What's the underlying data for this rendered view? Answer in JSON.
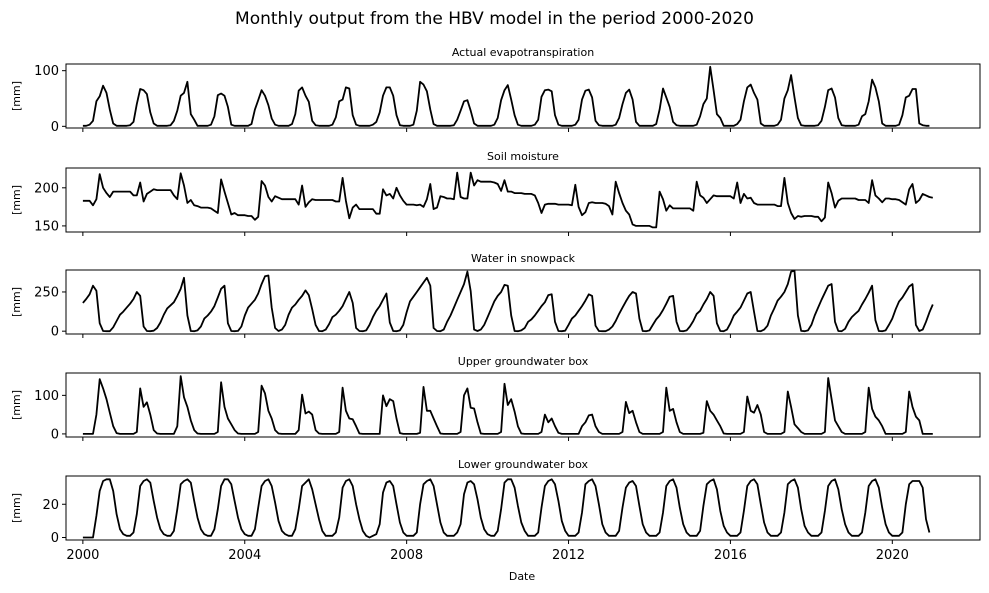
{
  "chart_data": {
    "type": "line",
    "title": "Monthly output from the HBV model in the period 2000-2020",
    "xlabel": "Date",
    "xlim": [
      "1999-08",
      "2022-03"
    ],
    "xticks": [
      "2000",
      "2004",
      "2008",
      "2012",
      "2016",
      "2020"
    ],
    "x_start": "2000-01",
    "x_step": "1 month",
    "line_color": "#000000",
    "grid": false,
    "legend": "none",
    "panels": [
      {
        "title": "Actual evapotranspiration",
        "ylabel": "[mm]",
        "ylim": [
          -3,
          112
        ],
        "yticks": [
          0,
          100
        ],
        "values": [
          1,
          1,
          3,
          10,
          45,
          54,
          73,
          60,
          30,
          5,
          1,
          1,
          1,
          1,
          2,
          8,
          40,
          67,
          65,
          58,
          25,
          5,
          1,
          1,
          1,
          1,
          2,
          10,
          28,
          55,
          60,
          80,
          22,
          12,
          1,
          1,
          1,
          1,
          3,
          18,
          56,
          59,
          55,
          35,
          3,
          1,
          1,
          1,
          1,
          1,
          4,
          30,
          47,
          65,
          55,
          38,
          14,
          3,
          1,
          1,
          1,
          1,
          4,
          22,
          64,
          70,
          55,
          44,
          10,
          2,
          1,
          1,
          1,
          1,
          3,
          16,
          45,
          48,
          70,
          68,
          20,
          3,
          1,
          1,
          1,
          1,
          3,
          8,
          25,
          55,
          70,
          70,
          55,
          20,
          2,
          1,
          1,
          1,
          3,
          28,
          80,
          75,
          63,
          30,
          4,
          1,
          1,
          1,
          1,
          1,
          2,
          12,
          28,
          45,
          47,
          28,
          5,
          1,
          1,
          1,
          1,
          1,
          3,
          15,
          47,
          65,
          74,
          48,
          20,
          3,
          1,
          1,
          1,
          1,
          3,
          12,
          53,
          65,
          66,
          63,
          20,
          3,
          1,
          1,
          1,
          1,
          3,
          12,
          48,
          64,
          66,
          52,
          10,
          2,
          1,
          1,
          1,
          1,
          3,
          15,
          40,
          60,
          66,
          48,
          8,
          1,
          1,
          1,
          1,
          1,
          4,
          30,
          68,
          52,
          35,
          8,
          2,
          1,
          1,
          1,
          1,
          1,
          3,
          18,
          40,
          50,
          107,
          65,
          22,
          15,
          1,
          1,
          1,
          1,
          4,
          12,
          45,
          70,
          75,
          60,
          48,
          5,
          1,
          1,
          1,
          1,
          3,
          12,
          50,
          65,
          92,
          52,
          15,
          2,
          1,
          1,
          1,
          1,
          2,
          10,
          35,
          65,
          68,
          52,
          15,
          2,
          1,
          1,
          1,
          1,
          3,
          18,
          22,
          45,
          84,
          70,
          45,
          5,
          1,
          1,
          1,
          1,
          3,
          20,
          52,
          55,
          67,
          67,
          5,
          2,
          1,
          1
        ]
      },
      {
        "title": "Soil moisture",
        "ylabel": "[mm]",
        "ylim": [
          142,
          226
        ],
        "yticks": [
          150,
          200
        ],
        "values": [
          183,
          183,
          183,
          177,
          185,
          218,
          200,
          193,
          188,
          195,
          195,
          195,
          195,
          195,
          195,
          190,
          190,
          207,
          182,
          192,
          195,
          198,
          197,
          197,
          197,
          197,
          197,
          190,
          185,
          219,
          203,
          180,
          184,
          177,
          176,
          174,
          174,
          174,
          173,
          170,
          167,
          211,
          195,
          180,
          165,
          167,
          164,
          164,
          164,
          163,
          163,
          158,
          162,
          209,
          203,
          188,
          182,
          189,
          187,
          185,
          185,
          185,
          185,
          185,
          178,
          203,
          175,
          181,
          185,
          184,
          184,
          184,
          184,
          184,
          184,
          182,
          182,
          213,
          183,
          160,
          174,
          178,
          172,
          172,
          172,
          172,
          172,
          166,
          166,
          198,
          190,
          192,
          186,
          200,
          190,
          183,
          178,
          178,
          178,
          177,
          178,
          175,
          185,
          205,
          172,
          174,
          189,
          188,
          186,
          186,
          185,
          220,
          188,
          186,
          186,
          220,
          203,
          210,
          208,
          208,
          208,
          208,
          207,
          205,
          196,
          210,
          195,
          195,
          193,
          193,
          193,
          192,
          192,
          192,
          190,
          180,
          167,
          178,
          179,
          179,
          179,
          178,
          178,
          178,
          178,
          177,
          204,
          175,
          164,
          168,
          180,
          181,
          180,
          180,
          180,
          179,
          176,
          165,
          208,
          193,
          180,
          170,
          165,
          152,
          150,
          150,
          150,
          150,
          150,
          148,
          148,
          195,
          185,
          170,
          177,
          173,
          173,
          173,
          173,
          173,
          173,
          170,
          208,
          190,
          187,
          180,
          185,
          190,
          189,
          189,
          189,
          189,
          189,
          186,
          207,
          180,
          192,
          186,
          187,
          180,
          178,
          178,
          178,
          178,
          178,
          178,
          176,
          176,
          213,
          180,
          167,
          159,
          163,
          162,
          163,
          163,
          163,
          162,
          162,
          156,
          161,
          207,
          193,
          174,
          183,
          186,
          186,
          186,
          186,
          186,
          184,
          184,
          184,
          180,
          210,
          190,
          186,
          181,
          186,
          186,
          185,
          185,
          184,
          181,
          178,
          198,
          205,
          180,
          184,
          192,
          190,
          188,
          187
        ]
      },
      {
        "title": "Water in snowpack",
        "ylabel": "[mm]",
        "ylim": [
          -18,
          390
        ],
        "yticks": [
          0,
          250
        ],
        "values": [
          180,
          205,
          235,
          290,
          258,
          50,
          1,
          0,
          0,
          25,
          65,
          105,
          125,
          150,
          175,
          205,
          250,
          225,
          30,
          1,
          0,
          3,
          20,
          55,
          105,
          145,
          165,
          185,
          225,
          270,
          340,
          100,
          1,
          0,
          5,
          30,
          80,
          100,
          125,
          160,
          215,
          270,
          290,
          50,
          1,
          0,
          2,
          30,
          100,
          150,
          175,
          200,
          240,
          300,
          350,
          355,
          150,
          20,
          1,
          10,
          40,
          105,
          150,
          170,
          200,
          225,
          260,
          230,
          140,
          40,
          1,
          0,
          10,
          45,
          90,
          105,
          130,
          160,
          205,
          250,
          180,
          20,
          1,
          0,
          5,
          40,
          90,
          130,
          160,
          200,
          240,
          55,
          1,
          0,
          5,
          40,
          120,
          190,
          220,
          250,
          280,
          310,
          340,
          290,
          20,
          1,
          0,
          10,
          60,
          100,
          150,
          200,
          250,
          300,
          380,
          255,
          10,
          1,
          10,
          40,
          90,
          140,
          190,
          225,
          250,
          295,
          290,
          100,
          1,
          0,
          5,
          20,
          60,
          75,
          100,
          130,
          160,
          185,
          230,
          235,
          60,
          1,
          0,
          3,
          40,
          80,
          100,
          130,
          160,
          195,
          235,
          225,
          35,
          1,
          0,
          0,
          10,
          30,
          65,
          110,
          150,
          190,
          225,
          250,
          240,
          80,
          1,
          0,
          5,
          40,
          75,
          100,
          135,
          175,
          220,
          225,
          60,
          1,
          0,
          5,
          30,
          65,
          110,
          130,
          170,
          205,
          250,
          225,
          50,
          1,
          0,
          10,
          50,
          100,
          125,
          150,
          195,
          240,
          250,
          125,
          1,
          0,
          10,
          35,
          100,
          145,
          195,
          220,
          250,
          300,
          380,
          385,
          100,
          2,
          0,
          5,
          40,
          100,
          150,
          200,
          245,
          290,
          300,
          60,
          1,
          0,
          15,
          60,
          90,
          110,
          130,
          170,
          205,
          245,
          290,
          70,
          1,
          0,
          5,
          40,
          80,
          140,
          190,
          215,
          250,
          285,
          300,
          40,
          1,
          10,
          60,
          120,
          170
        ]
      },
      {
        "title": "Upper groundwater box",
        "ylabel": "[mm]",
        "ylim": [
          -8,
          158
        ],
        "yticks": [
          0,
          100
        ],
        "values": [
          0,
          0,
          0,
          0,
          50,
          142,
          118,
          90,
          55,
          20,
          2,
          0,
          0,
          0,
          0,
          0,
          5,
          118,
          70,
          82,
          50,
          10,
          1,
          0,
          0,
          0,
          0,
          0,
          20,
          150,
          95,
          70,
          35,
          10,
          1,
          0,
          0,
          0,
          0,
          0,
          5,
          134,
          70,
          40,
          25,
          10,
          1,
          0,
          0,
          0,
          0,
          0,
          5,
          125,
          105,
          60,
          40,
          10,
          1,
          0,
          0,
          0,
          0,
          0,
          10,
          102,
          53,
          58,
          50,
          10,
          1,
          0,
          0,
          0,
          0,
          0,
          5,
          120,
          60,
          40,
          38,
          20,
          1,
          0,
          0,
          0,
          0,
          0,
          0,
          100,
          72,
          90,
          85,
          40,
          2,
          0,
          0,
          0,
          0,
          0,
          3,
          122,
          60,
          60,
          40,
          20,
          1,
          0,
          0,
          0,
          0,
          0,
          5,
          100,
          118,
          68,
          66,
          30,
          1,
          0,
          0,
          0,
          0,
          0,
          5,
          130,
          75,
          90,
          58,
          20,
          1,
          0,
          0,
          0,
          0,
          0,
          5,
          50,
          30,
          40,
          20,
          3,
          0,
          0,
          0,
          0,
          0,
          0,
          20,
          30,
          48,
          50,
          20,
          5,
          0,
          0,
          0,
          0,
          0,
          0,
          5,
          83,
          54,
          60,
          30,
          5,
          0,
          0,
          0,
          0,
          0,
          0,
          5,
          120,
          60,
          65,
          30,
          5,
          0,
          0,
          0,
          0,
          0,
          0,
          3,
          85,
          60,
          50,
          35,
          20,
          1,
          0,
          0,
          0,
          0,
          0,
          5,
          97,
          60,
          55,
          75,
          50,
          5,
          0,
          0,
          0,
          0,
          0,
          5,
          110,
          70,
          25,
          15,
          5,
          0,
          0,
          0,
          0,
          0,
          0,
          5,
          145,
          90,
          35,
          20,
          5,
          0,
          0,
          0,
          0,
          0,
          0,
          5,
          120,
          65,
          45,
          35,
          20,
          0,
          0,
          0,
          0,
          0,
          0,
          5,
          110,
          70,
          45,
          35,
          0,
          0,
          0,
          0
        ]
      },
      {
        "title": "Lower groundwater box",
        "ylabel": "[mm]",
        "ylim": [
          -1.5,
          37
        ],
        "yticks": [
          0,
          20
        ],
        "values": [
          0,
          0,
          0,
          0,
          13,
          28,
          34,
          35,
          35,
          28,
          14,
          5,
          2,
          1,
          1,
          3,
          14,
          31,
          34,
          35,
          33,
          22,
          12,
          5,
          2,
          1,
          1,
          4,
          17,
          32,
          34,
          35,
          33,
          22,
          12,
          5,
          2,
          1,
          1,
          5,
          17,
          31,
          35,
          35,
          32,
          22,
          12,
          5,
          2,
          1,
          1,
          5,
          18,
          31,
          34,
          35,
          31,
          21,
          10,
          4,
          2,
          1,
          1,
          5,
          17,
          31,
          33,
          35,
          29,
          20,
          11,
          4,
          1,
          1,
          1,
          3,
          12,
          30,
          34,
          35,
          31,
          20,
          11,
          4,
          1,
          0,
          1,
          2,
          8,
          27,
          33,
          34,
          31,
          20,
          9,
          3,
          1,
          1,
          1,
          3,
          20,
          32,
          34,
          35,
          31,
          20,
          9,
          3,
          1,
          1,
          1,
          3,
          8,
          26,
          33,
          34,
          32,
          23,
          12,
          5,
          2,
          1,
          1,
          4,
          17,
          33,
          35,
          35,
          30,
          19,
          9,
          4,
          1,
          1,
          1,
          3,
          18,
          31,
          34,
          35,
          32,
          22,
          10,
          4,
          1,
          1,
          1,
          3,
          15,
          32,
          34,
          35,
          31,
          20,
          8,
          3,
          1,
          1,
          1,
          4,
          18,
          30,
          33,
          34,
          31,
          19,
          8,
          3,
          1,
          1,
          1,
          3,
          15,
          31,
          34,
          35,
          30,
          18,
          8,
          3,
          1,
          1,
          1,
          4,
          19,
          32,
          34,
          35,
          29,
          16,
          7,
          3,
          1,
          1,
          1,
          3,
          16,
          31,
          34,
          35,
          32,
          20,
          9,
          3,
          1,
          1,
          1,
          3,
          15,
          32,
          34,
          35,
          30,
          17,
          7,
          3,
          1,
          1,
          1,
          3,
          16,
          31,
          34,
          35,
          29,
          17,
          8,
          3,
          1,
          1,
          1,
          3,
          15,
          31,
          34,
          35,
          30,
          18,
          8,
          3,
          1,
          1,
          1,
          3,
          20,
          32,
          34,
          34,
          34,
          30,
          11,
          3
        ]
      }
    ]
  }
}
